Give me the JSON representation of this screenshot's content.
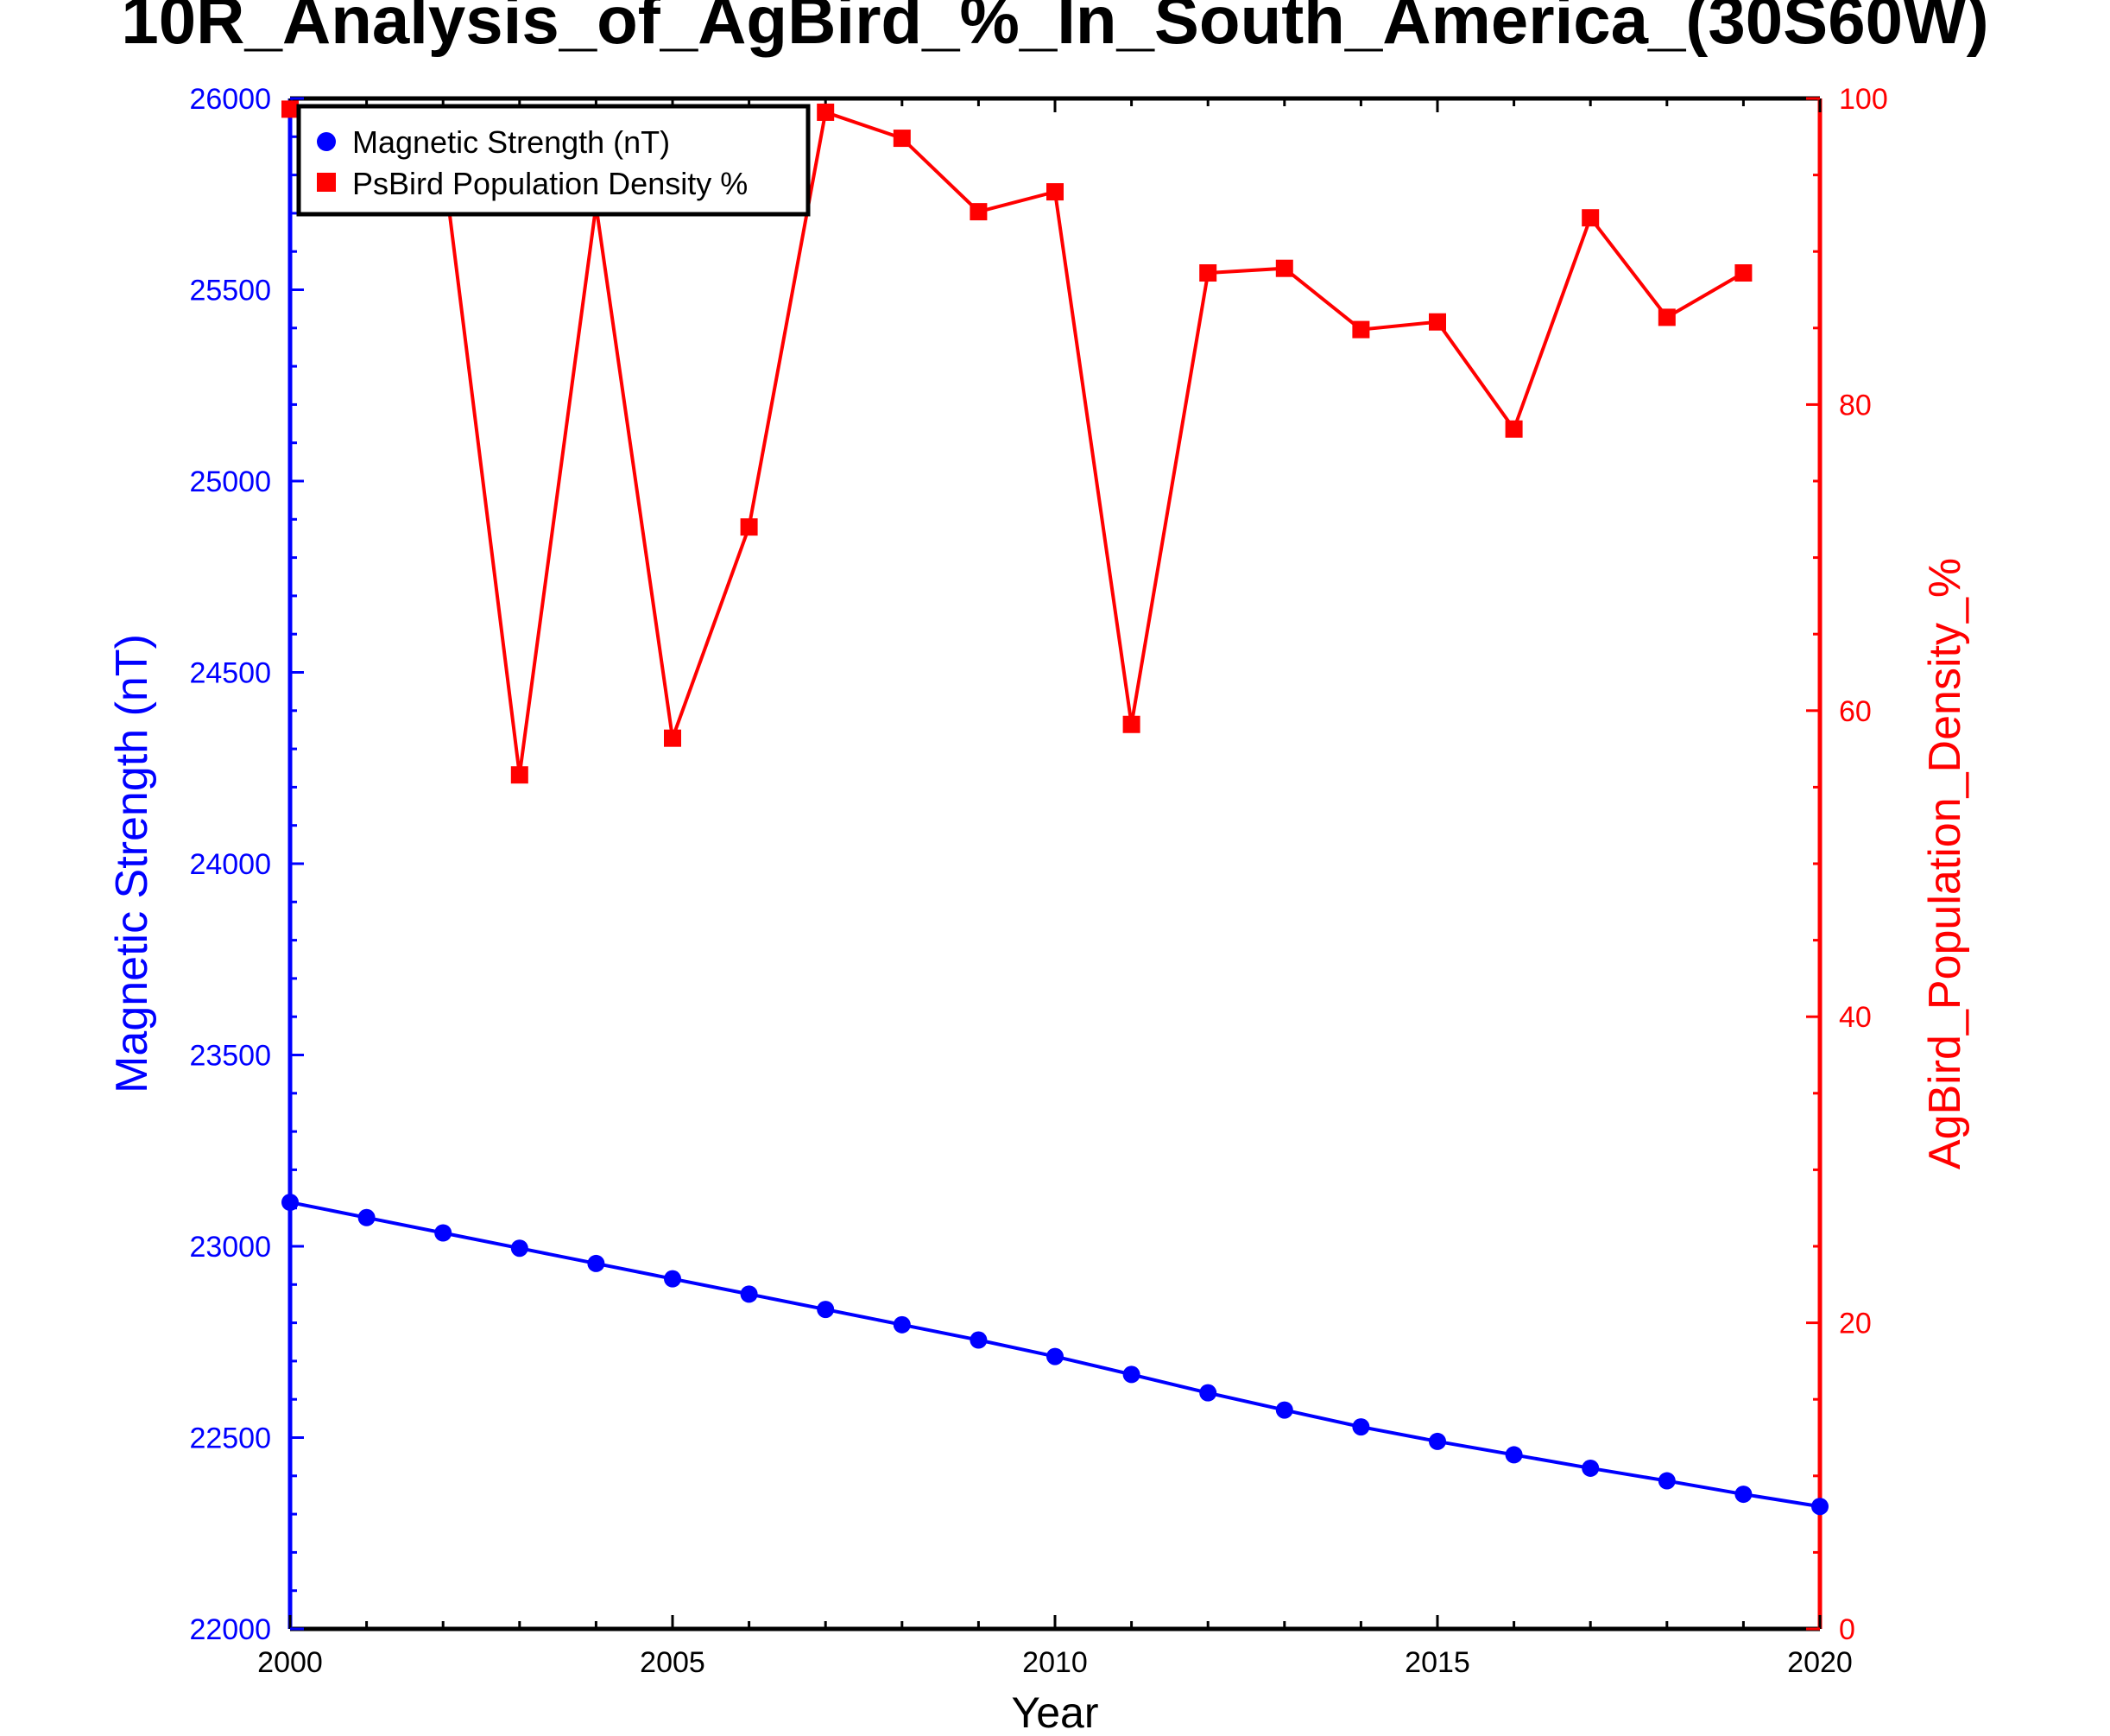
{
  "chart_data": {
    "type": "line",
    "title": "10R_Analysis_of_AgBird_%_In_South_America_(30S60W)",
    "xlabel": "Year",
    "ylabel_left": "Magnetic Strength (nT)",
    "ylabel_right": "AgBird_Population_Density_%",
    "xlim": [
      2000,
      2020
    ],
    "ylim_left": [
      22000,
      26000
    ],
    "ylim_right": [
      0,
      100
    ],
    "x_ticks": [
      2000,
      2005,
      2010,
      2015,
      2020
    ],
    "y_left_ticks": [
      22000,
      22500,
      23000,
      23500,
      24000,
      24500,
      25000,
      25500,
      26000
    ],
    "y_right_ticks": [
      0,
      20,
      40,
      60,
      80,
      100
    ],
    "legend_position": "top-left",
    "series": [
      {
        "name": "Magnetic Strength (nT)",
        "axis": "left",
        "color": "#0000ff",
        "marker": "circle",
        "x": [
          2000,
          2001,
          2002,
          2003,
          2004,
          2005,
          2006,
          2007,
          2008,
          2009,
          2010,
          2011,
          2012,
          2013,
          2014,
          2015,
          2016,
          2017,
          2018,
          2019,
          2020
        ],
        "values": [
          23115,
          23075,
          23035,
          22995,
          22955,
          22915,
          22875,
          22835,
          22795,
          22755,
          22712,
          22665,
          22617,
          22572,
          22528,
          22490,
          22455,
          22420,
          22387,
          22352,
          22320
        ]
      },
      {
        "name": "PsBird Population Density %",
        "axis": "right",
        "color": "#ff0000",
        "marker": "square",
        "x": [
          2000,
          2001,
          2002,
          2003,
          2004,
          2005,
          2006,
          2007,
          2008,
          2009,
          2010,
          2011,
          2012,
          2013,
          2014,
          2015,
          2016,
          2017,
          2018,
          2019
        ],
        "values": [
          99.3,
          96.2,
          95.9,
          55.8,
          93.0,
          58.2,
          72.0,
          99.1,
          97.4,
          92.6,
          93.9,
          59.1,
          88.6,
          88.9,
          84.9,
          85.4,
          78.4,
          92.2,
          85.7,
          88.6
        ]
      }
    ]
  },
  "colors": {
    "left_axis": "#0000ff",
    "right_axis": "#ff0000",
    "frame": "#000000"
  }
}
